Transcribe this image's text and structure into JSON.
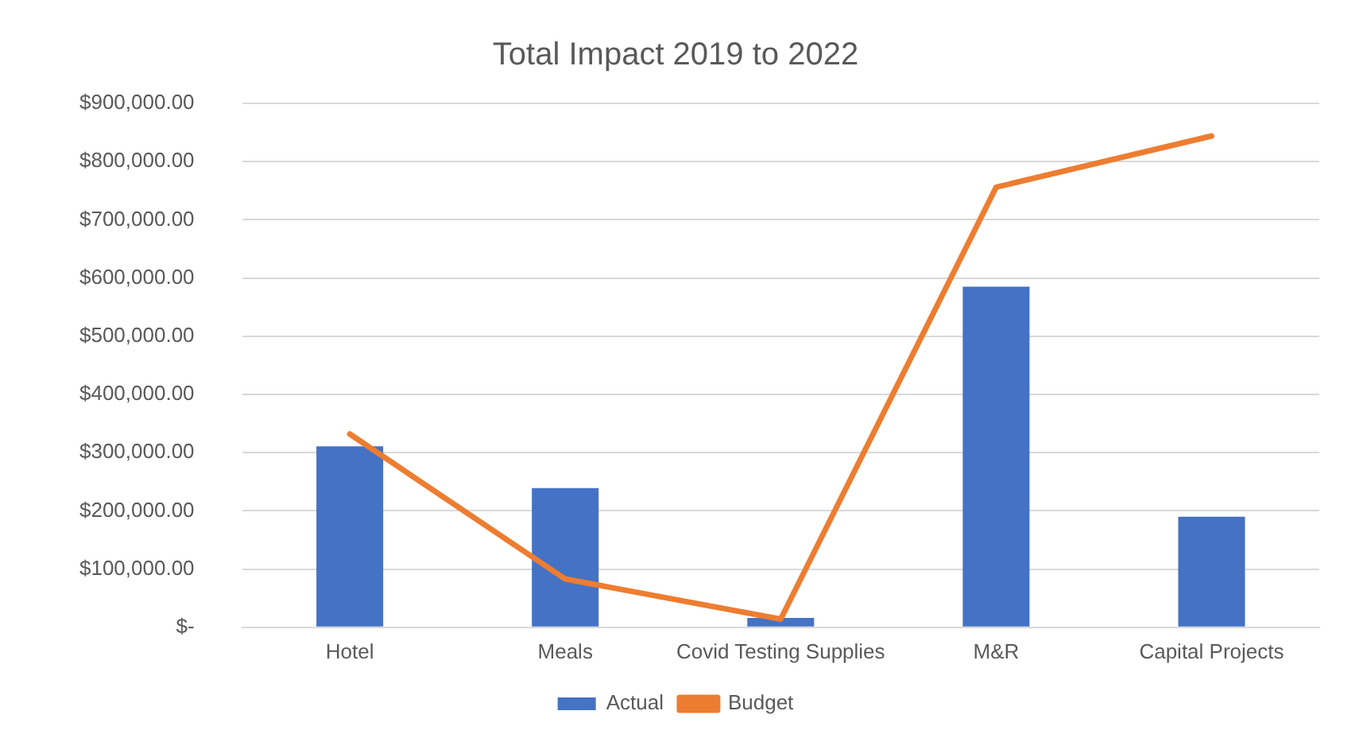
{
  "chart_data": {
    "type": "bar",
    "title": "Total Impact 2019 to 2022",
    "categories": [
      "Hotel",
      "Meals",
      "Covid Testing Supplies",
      "M&R",
      "Capital Projects"
    ],
    "series": [
      {
        "name": "Actual",
        "color": "#4472c4",
        "values": [
          311000,
          239000,
          16000,
          585000,
          190000
        ]
      },
      {
        "name": "Budget",
        "type": "line",
        "color": "#ed7d31",
        "values": [
          332000,
          83000,
          14000,
          756000,
          844000
        ]
      }
    ],
    "ylim": [
      0,
      900000
    ],
    "yticks": [
      {
        "value": 0,
        "label": "$-"
      },
      {
        "value": 100000,
        "label": "$100,000.00"
      },
      {
        "value": 200000,
        "label": "$200,000.00"
      },
      {
        "value": 300000,
        "label": "$300,000.00"
      },
      {
        "value": 400000,
        "label": "$400,000.00"
      },
      {
        "value": 500000,
        "label": "$500,000.00"
      },
      {
        "value": 600000,
        "label": "$600,000.00"
      },
      {
        "value": 700000,
        "label": "$700,000.00"
      },
      {
        "value": 800000,
        "label": "$800,000.00"
      },
      {
        "value": 900000,
        "label": "$900,000.00"
      }
    ],
    "grid": "y",
    "legend": "bottom",
    "marker": "none"
  }
}
